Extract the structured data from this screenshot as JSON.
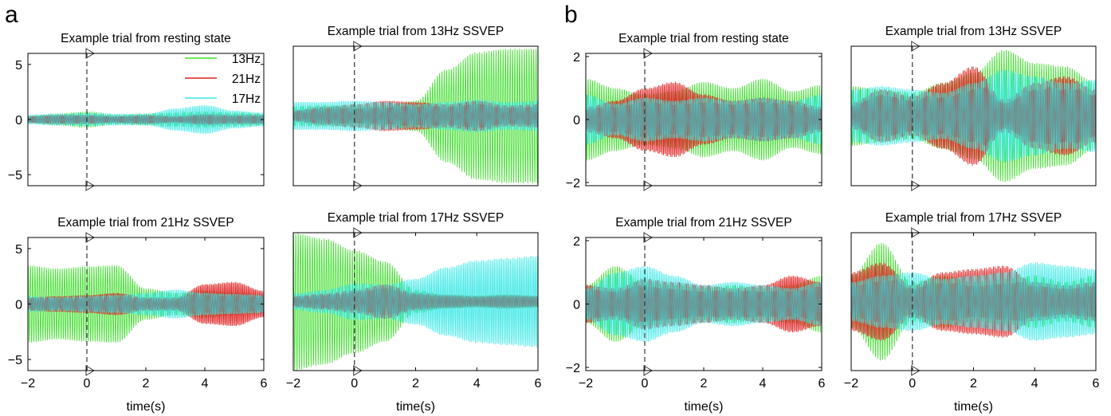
{
  "figure": {
    "panel_labels": [
      "a",
      "b"
    ]
  },
  "legend": {
    "entries": [
      "13Hz",
      "21Hz",
      "17Hz"
    ]
  },
  "colors": {
    "13Hz": "#3fdd2c",
    "21Hz": "#dd1f1f",
    "17Hz": "#3ce8e6",
    "overlap": "#6d8a8a",
    "axis": "#000000",
    "marker": "#333333"
  },
  "chart_data": [
    {
      "id": "a-rest",
      "group": "a",
      "type": "line",
      "title": "Example trial from resting state",
      "xlabel": "",
      "ylabel": "",
      "xlim": [
        -2,
        6
      ],
      "ylim": [
        -6,
        6
      ],
      "xticks": [],
      "yticks": [
        -5,
        0,
        5
      ],
      "grid": false,
      "legend_position": "top-right",
      "event_marker_x": 0,
      "envelopes": [
        {
          "name": "13Hz",
          "t": [
            -2,
            -1,
            0,
            1,
            2,
            3,
            4,
            5,
            6
          ],
          "amp": [
            0.3,
            0.5,
            0.7,
            0.4,
            0.5,
            0.6,
            0.7,
            0.6,
            0.5
          ]
        },
        {
          "name": "21Hz",
          "t": [
            -2,
            -1,
            0,
            1,
            2,
            3,
            4,
            5,
            6
          ],
          "amp": [
            0.3,
            0.4,
            0.4,
            0.3,
            0.4,
            0.3,
            0.5,
            0.4,
            0.4
          ]
        },
        {
          "name": "17Hz",
          "t": [
            -2,
            -1,
            0,
            1,
            2,
            3,
            4,
            5,
            6
          ],
          "amp": [
            0.4,
            0.5,
            0.6,
            0.5,
            0.5,
            1.0,
            1.3,
            0.8,
            0.6
          ]
        }
      ]
    },
    {
      "id": "a-13",
      "group": "a",
      "type": "line",
      "title": "Example trial from 13Hz SSVEP",
      "xlabel": "",
      "ylabel": "",
      "xlim": [
        -2,
        6
      ],
      "ylim": [
        -6,
        6
      ],
      "xticks": [],
      "yticks": [],
      "grid": false,
      "legend_position": "",
      "event_marker_x": 0,
      "envelopes": [
        {
          "name": "13Hz",
          "t": [
            -2,
            -1,
            0,
            1,
            2,
            3,
            4,
            5,
            6
          ],
          "amp": [
            0.8,
            0.9,
            0.8,
            0.9,
            1.3,
            4.0,
            5.5,
            5.8,
            5.8
          ]
        },
        {
          "name": "21Hz",
          "t": [
            -2,
            -1,
            0,
            1,
            2,
            3,
            4,
            5,
            6
          ],
          "amp": [
            0.5,
            0.8,
            1.0,
            1.3,
            1.2,
            1.0,
            1.3,
            0.9,
            1.0
          ]
        },
        {
          "name": "17Hz",
          "t": [
            -2,
            -1,
            0,
            1,
            2,
            3,
            4,
            5,
            6
          ],
          "amp": [
            1.2,
            1.2,
            1.3,
            1.2,
            1.0,
            1.2,
            1.4,
            1.2,
            1.3
          ]
        }
      ]
    },
    {
      "id": "a-21",
      "group": "a",
      "type": "line",
      "title": "Example trial from 21Hz SSVEP",
      "xlabel": "time(s)",
      "ylabel": "",
      "xlim": [
        -2,
        6
      ],
      "ylim": [
        -6,
        6
      ],
      "xticks": [
        -2,
        0,
        2,
        4,
        6
      ],
      "yticks": [
        -5,
        0,
        5
      ],
      "grid": false,
      "legend_position": "",
      "event_marker_x": 0,
      "envelopes": [
        {
          "name": "13Hz",
          "t": [
            -2,
            -1,
            0,
            1,
            2,
            3,
            4,
            5,
            6
          ],
          "amp": [
            3.5,
            3.2,
            3.4,
            3.5,
            1.4,
            1.0,
            1.2,
            1.0,
            0.8
          ]
        },
        {
          "name": "21Hz",
          "t": [
            -2,
            -1,
            0,
            1,
            2,
            3,
            4,
            5,
            6
          ],
          "amp": [
            0.6,
            0.7,
            0.8,
            1.0,
            0.6,
            0.6,
            1.8,
            2.0,
            1.2
          ]
        },
        {
          "name": "17Hz",
          "t": [
            -2,
            -1,
            0,
            1,
            2,
            3,
            4,
            5,
            6
          ],
          "amp": [
            0.7,
            0.6,
            0.7,
            0.8,
            1.0,
            1.3,
            1.0,
            0.9,
            0.8
          ]
        }
      ]
    },
    {
      "id": "a-17",
      "group": "a",
      "type": "line",
      "title": "Example trial from 17Hz SSVEP",
      "xlabel": "time(s)",
      "ylabel": "",
      "xlim": [
        -2,
        6
      ],
      "ylim": [
        -6,
        6
      ],
      "xticks": [
        -2,
        0,
        2,
        4,
        6
      ],
      "yticks": [],
      "grid": false,
      "legend_position": "",
      "event_marker_x": 0,
      "envelopes": [
        {
          "name": "13Hz",
          "t": [
            -2,
            -1,
            0,
            1,
            2,
            3,
            4,
            5,
            6
          ],
          "amp": [
            6.0,
            5.5,
            4.5,
            3.5,
            1.0,
            0.6,
            0.5,
            0.6,
            0.5
          ]
        },
        {
          "name": "21Hz",
          "t": [
            -2,
            -1,
            0,
            1,
            2,
            3,
            4,
            5,
            6
          ],
          "amp": [
            0.5,
            0.7,
            1.0,
            1.5,
            0.8,
            0.6,
            0.5,
            0.6,
            0.5
          ]
        },
        {
          "name": "17Hz",
          "t": [
            -2,
            -1,
            0,
            1,
            2,
            3,
            4,
            5,
            6
          ],
          "amp": [
            0.7,
            1.0,
            1.6,
            1.5,
            2.0,
            3.0,
            3.6,
            3.8,
            4.0
          ]
        }
      ]
    },
    {
      "id": "b-rest",
      "group": "b",
      "type": "line",
      "title": "Example trial from resting state",
      "xlabel": "",
      "ylabel": "",
      "xlim": [
        -2,
        6
      ],
      "ylim": [
        -2.1,
        2.1
      ],
      "xticks": [],
      "yticks": [
        -2,
        0,
        2
      ],
      "grid": false,
      "legend_position": "",
      "event_marker_x": 0,
      "envelopes": [
        {
          "name": "13Hz",
          "t": [
            -2,
            -1,
            0,
            1,
            2,
            3,
            4,
            5,
            6
          ],
          "amp": [
            1.3,
            1.0,
            0.8,
            0.9,
            1.2,
            1.0,
            1.3,
            0.9,
            1.1
          ]
        },
        {
          "name": "21Hz",
          "t": [
            -2,
            -1,
            0,
            1,
            2,
            3,
            4,
            5,
            6
          ],
          "amp": [
            0.4,
            0.6,
            1.0,
            1.2,
            0.8,
            0.6,
            0.7,
            0.6,
            0.4
          ]
        },
        {
          "name": "17Hz",
          "t": [
            -2,
            -1,
            0,
            1,
            2,
            3,
            4,
            5,
            6
          ],
          "amp": [
            0.8,
            0.5,
            0.7,
            0.6,
            0.7,
            0.6,
            0.7,
            0.6,
            0.8
          ]
        }
      ]
    },
    {
      "id": "b-13",
      "group": "b",
      "type": "line",
      "title": "Example trial from 13Hz SSVEP",
      "xlabel": "",
      "ylabel": "",
      "xlim": [
        -2,
        6
      ],
      "ylim": [
        -2.1,
        2.1
      ],
      "xticks": [],
      "yticks": [],
      "grid": false,
      "legend_position": "",
      "event_marker_x": 0,
      "envelopes": [
        {
          "name": "13Hz",
          "t": [
            -2,
            -1,
            0,
            1,
            2,
            3,
            4,
            5,
            6
          ],
          "amp": [
            0.9,
            0.8,
            0.7,
            1.0,
            1.3,
            2.0,
            1.6,
            1.5,
            1.0
          ]
        },
        {
          "name": "21Hz",
          "t": [
            -2,
            -1,
            0,
            1,
            2,
            3,
            4,
            5,
            6
          ],
          "amp": [
            0.4,
            0.8,
            0.6,
            1.0,
            1.5,
            0.5,
            1.0,
            1.2,
            0.8
          ]
        },
        {
          "name": "17Hz",
          "t": [
            -2,
            -1,
            0,
            1,
            2,
            3,
            4,
            5,
            6
          ],
          "amp": [
            0.8,
            0.9,
            0.8,
            0.7,
            1.0,
            1.4,
            1.2,
            1.0,
            1.1
          ]
        }
      ]
    },
    {
      "id": "b-21",
      "group": "b",
      "type": "line",
      "title": "Example trial from 21Hz SSVEP",
      "xlabel": "time(s)",
      "ylabel": "",
      "xlim": [
        -2,
        6
      ],
      "ylim": [
        -2.1,
        2.1
      ],
      "xticks": [
        -2,
        0,
        2,
        4,
        6
      ],
      "yticks": [
        -2,
        0,
        2
      ],
      "grid": false,
      "legend_position": "",
      "event_marker_x": 0,
      "envelopes": [
        {
          "name": "13Hz",
          "t": [
            -2,
            -1,
            0,
            1,
            2,
            3,
            4,
            5,
            6
          ],
          "amp": [
            0.6,
            1.2,
            0.7,
            0.6,
            0.5,
            0.6,
            0.5,
            0.6,
            0.9
          ]
        },
        {
          "name": "21Hz",
          "t": [
            -2,
            -1,
            0,
            1,
            2,
            3,
            4,
            5,
            6
          ],
          "amp": [
            0.6,
            0.5,
            0.8,
            0.7,
            0.6,
            0.5,
            0.6,
            0.9,
            0.7
          ]
        },
        {
          "name": "17Hz",
          "t": [
            -2,
            -1,
            0,
            1,
            2,
            3,
            4,
            5,
            6
          ],
          "amp": [
            0.5,
            1.0,
            1.2,
            0.9,
            0.6,
            0.7,
            0.6,
            0.5,
            0.7
          ]
        }
      ]
    },
    {
      "id": "b-17",
      "group": "b",
      "type": "line",
      "title": "Example trial from 17Hz SSVEP",
      "xlabel": "time(s)",
      "ylabel": "",
      "xlim": [
        -2,
        6
      ],
      "ylim": [
        -2.1,
        2.1
      ],
      "xticks": [
        -2,
        0,
        2,
        4,
        6
      ],
      "yticks": [],
      "grid": false,
      "legend_position": "",
      "event_marker_x": 0,
      "envelopes": [
        {
          "name": "13Hz",
          "t": [
            -2,
            -1,
            0,
            1,
            2,
            3,
            4,
            5,
            6
          ],
          "amp": [
            0.8,
            1.8,
            0.6,
            0.8,
            0.6,
            0.7,
            0.8,
            0.6,
            0.8
          ]
        },
        {
          "name": "21Hz",
          "t": [
            -2,
            -1,
            0,
            1,
            2,
            3,
            4,
            5,
            6
          ],
          "amp": [
            0.9,
            1.2,
            0.5,
            0.9,
            1.0,
            1.1,
            0.6,
            0.5,
            0.6
          ]
        },
        {
          "name": "17Hz",
          "t": [
            -2,
            -1,
            0,
            1,
            2,
            3,
            4,
            5,
            6
          ],
          "amp": [
            0.6,
            0.8,
            0.9,
            0.7,
            0.8,
            0.9,
            1.2,
            1.1,
            1.0
          ]
        }
      ]
    }
  ]
}
